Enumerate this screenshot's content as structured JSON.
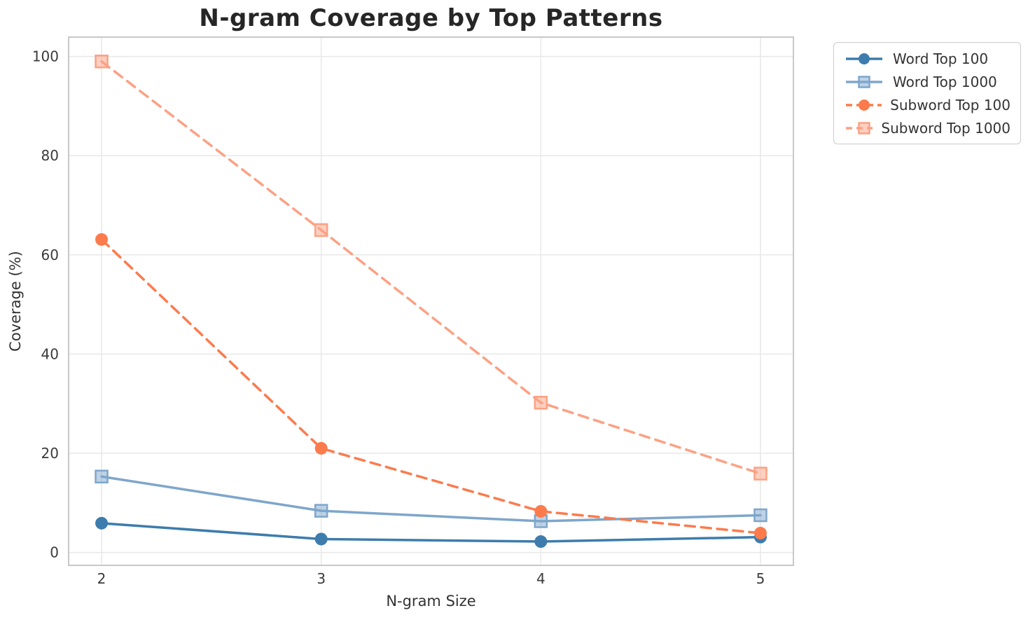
{
  "chart_data": {
    "type": "line",
    "title": "N-gram Coverage by Top Patterns",
    "xlabel": "N-gram Size",
    "ylabel": "Coverage (%)",
    "x": [
      2,
      3,
      4,
      5
    ],
    "xtick_labels": [
      "2",
      "3",
      "4",
      "5"
    ],
    "yticks": [
      0,
      20,
      40,
      60,
      80,
      100
    ],
    "xlim": [
      1.85,
      5.15
    ],
    "ylim": [
      -2.6,
      103.9
    ],
    "grid": true,
    "legend_position": "outside-top-right",
    "series": [
      {
        "name": "Word Top 100",
        "values": [
          5.9,
          2.7,
          2.2,
          3.1
        ],
        "color": "#3D7CAC",
        "line_style": "solid",
        "marker": "circle"
      },
      {
        "name": "Word Top 1000",
        "values": [
          15.3,
          8.4,
          6.3,
          7.5
        ],
        "color": "#7EA6CB",
        "line_style": "solid",
        "marker": "square"
      },
      {
        "name": "Subword Top 100",
        "values": [
          63.1,
          21.0,
          8.3,
          3.9
        ],
        "color": "#FB7B4D",
        "line_style": "dashed",
        "marker": "circle"
      },
      {
        "name": "Subword Top 1000",
        "values": [
          99.0,
          65.0,
          30.2,
          15.9
        ],
        "color": "#FCA183",
        "line_style": "dashed",
        "marker": "square"
      }
    ],
    "style": {
      "grid_color": "#E8E8E8",
      "spine_color": "#C8C8C8",
      "tick_color": "#3A3A3A"
    }
  }
}
